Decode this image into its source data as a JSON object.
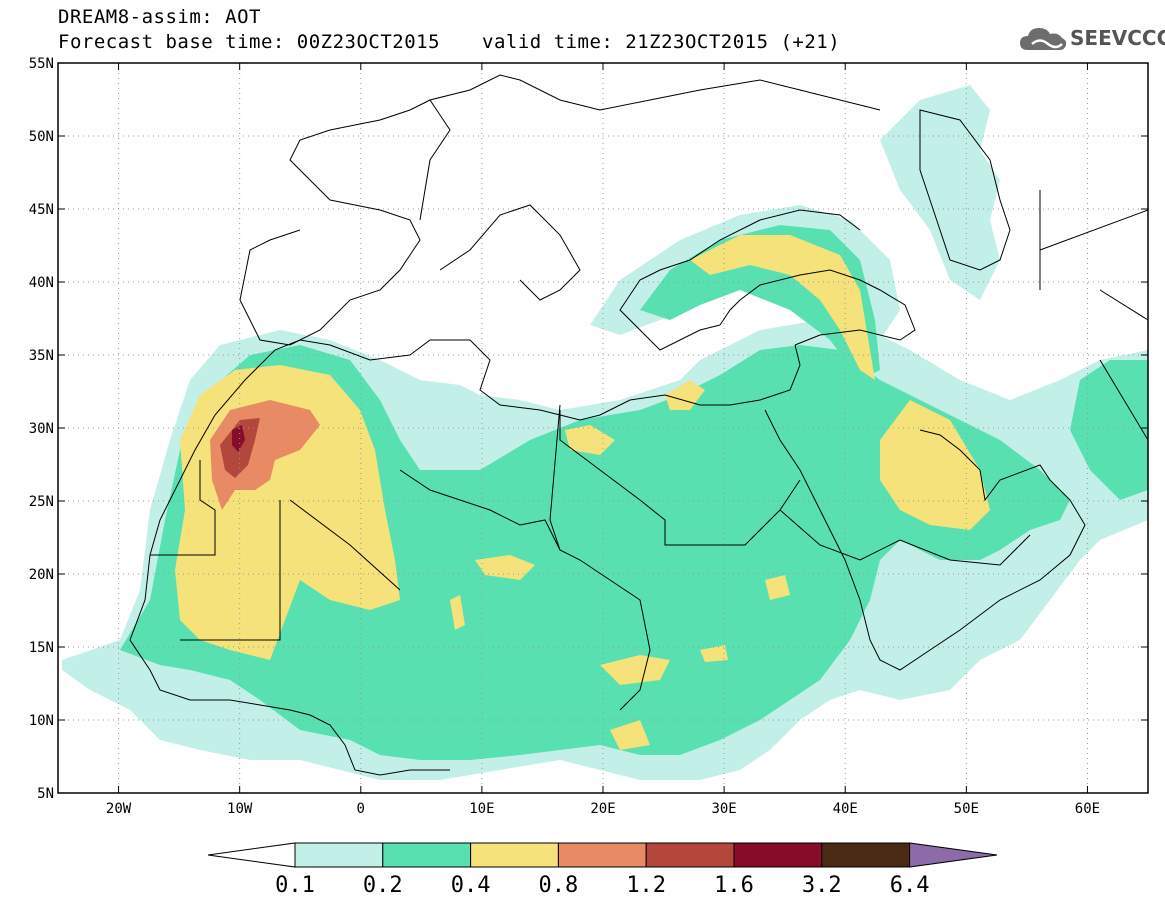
{
  "header": {
    "line1": "DREAM8-assim: AOT",
    "line2_left": "Forecast base time: 00Z23OCT2015",
    "line2_right": "valid time: 21Z23OCT2015 (+21)"
  },
  "logo": {
    "text": "SEEVCCC",
    "icon": "cloud-icon"
  },
  "map": {
    "lon_range": [
      -25,
      65
    ],
    "lat_range": [
      5,
      55
    ],
    "lat_ticks": [
      "55N",
      "50N",
      "45N",
      "40N",
      "35N",
      "30N",
      "25N",
      "20N",
      "15N",
      "10N",
      "5N"
    ],
    "lon_ticks": [
      "20W",
      "10W",
      "0",
      "10E",
      "20E",
      "30E",
      "40E",
      "50E",
      "60E"
    ]
  },
  "colorbar": {
    "labels": [
      "0.1",
      "0.2",
      "0.4",
      "0.8",
      "1.2",
      "1.6",
      "3.2",
      "6.4"
    ],
    "colors": [
      "#ffffff",
      "#c3efe9",
      "#59e0b0",
      "#f5e27a",
      "#e88a64",
      "#b3473c",
      "#850d2a",
      "#4a2a14",
      "#8c6ba8"
    ]
  }
}
